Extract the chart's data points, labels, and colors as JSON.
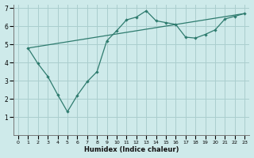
{
  "xlabel": "Humidex (Indice chaleur)",
  "bg_color": "#ceeaea",
  "grid_color": "#aacece",
  "line_color": "#2e7b6e",
  "xlim": [
    -0.5,
    23.5
  ],
  "ylim": [
    0,
    7.2
  ],
  "xtick_labels": [
    "0",
    "1",
    "2",
    "3",
    "4",
    "5",
    "6",
    "7",
    "8",
    "9",
    "10",
    "11",
    "12",
    "13",
    "14",
    "15",
    "16",
    "17",
    "18",
    "19",
    "20",
    "21",
    "22",
    "23"
  ],
  "xtick_vals": [
    0,
    1,
    2,
    3,
    4,
    5,
    6,
    7,
    8,
    9,
    10,
    11,
    12,
    13,
    14,
    15,
    16,
    17,
    18,
    19,
    20,
    21,
    22,
    23
  ],
  "ytick_vals": [
    1,
    2,
    3,
    4,
    5,
    6,
    7
  ],
  "line1_x": [
    1,
    2,
    3,
    4,
    5,
    6,
    7,
    8,
    9,
    10,
    11,
    12,
    13,
    14,
    15,
    16,
    17,
    18,
    19,
    20,
    21,
    22,
    23
  ],
  "line1_y": [
    4.8,
    3.95,
    3.25,
    2.25,
    1.3,
    2.2,
    2.95,
    3.5,
    5.2,
    5.75,
    6.35,
    6.5,
    6.85,
    6.3,
    6.2,
    6.1,
    5.4,
    5.35,
    5.55,
    5.8,
    6.4,
    6.55,
    6.7
  ],
  "line2_x": [
    1,
    23
  ],
  "line2_y": [
    4.8,
    6.7
  ]
}
